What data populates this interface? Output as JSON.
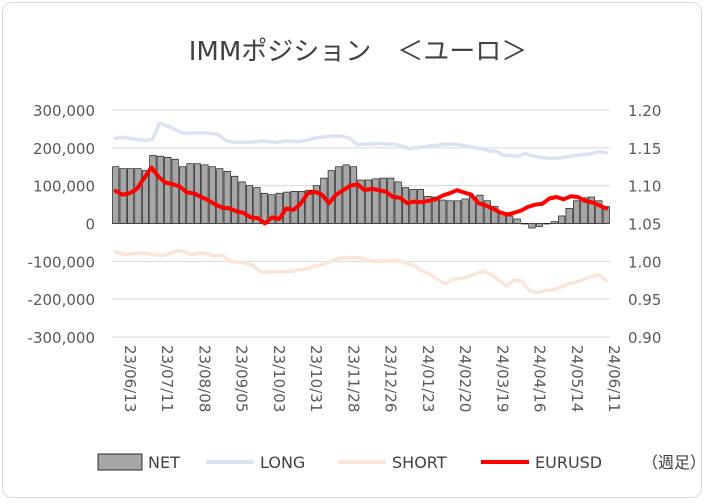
{
  "chart_data": {
    "type": "bar+line",
    "title": "IMMポジション　＜ユーロ＞",
    "unit_note": "（週足）",
    "y_left": {
      "min": -300000,
      "max": 300000,
      "step": 100000,
      "tick_labels": [
        "300,000",
        "200,000",
        "100,000",
        "0",
        "-100,000",
        "-200,000",
        "-300,000"
      ]
    },
    "y_right": {
      "min": 0.9,
      "max": 1.2,
      "step": 0.05,
      "tick_labels": [
        "1.20",
        "1.15",
        "1.10",
        "1.05",
        "1.00",
        "0.95",
        "0.90"
      ]
    },
    "x_tick_labels": [
      "23/06/13",
      "23/07/11",
      "23/08/08",
      "23/09/05",
      "23/10/03",
      "23/10/31",
      "23/11/28",
      "23/12/26",
      "24/01/23",
      "24/02/20",
      "24/03/19",
      "24/04/16",
      "24/05/14",
      "24/06/11"
    ],
    "series": [
      {
        "name": "NET",
        "kind": "bar",
        "color": "#a6a6a6",
        "values": [
          150000,
          145000,
          145000,
          145000,
          140000,
          180000,
          178000,
          175000,
          170000,
          150000,
          158000,
          158000,
          155000,
          150000,
          145000,
          138000,
          125000,
          110000,
          100000,
          95000,
          80000,
          76000,
          80000,
          83000,
          85000,
          85000,
          88000,
          100000,
          120000,
          140000,
          150000,
          155000,
          150000,
          115000,
          115000,
          118000,
          120000,
          120000,
          110000,
          95000,
          90000,
          90000,
          72000,
          70000,
          62000,
          60000,
          60000,
          65000,
          70000,
          75000,
          60000,
          45000,
          30000,
          20000,
          12000,
          0,
          -12000,
          -8000,
          0,
          5000,
          20000,
          40000,
          60000,
          68000,
          70000,
          60000,
          45000
        ]
      },
      {
        "name": "LONG",
        "kind": "line",
        "color": "#dae3f3",
        "values": [
          225000,
          228000,
          225000,
          222000,
          220000,
          222000,
          265000,
          258000,
          250000,
          240000,
          238000,
          240000,
          240000,
          238000,
          235000,
          220000,
          215000,
          215000,
          214000,
          216000,
          218000,
          216000,
          214000,
          218000,
          218000,
          216000,
          220000,
          225000,
          228000,
          230000,
          232000,
          230000,
          225000,
          208000,
          210000,
          210000,
          212000,
          210000,
          210000,
          205000,
          198000,
          200000,
          202000,
          205000,
          207000,
          210000,
          210000,
          208000,
          205000,
          200000,
          198000,
          192000,
          190000,
          180000,
          180000,
          178000,
          185000,
          178000,
          175000,
          172000,
          172000,
          174000,
          178000,
          180000,
          182000,
          185000,
          190000,
          187000
        ]
      },
      {
        "name": "SHORT",
        "kind": "line",
        "color": "#fbe5d6",
        "values": [
          -75000,
          -82000,
          -80000,
          -78000,
          -80000,
          -82000,
          -85000,
          -80000,
          -72000,
          -75000,
          -82000,
          -78000,
          -80000,
          -85000,
          -85000,
          -100000,
          -102000,
          -105000,
          -112000,
          -130000,
          -128000,
          -128000,
          -128000,
          -126000,
          -122000,
          -120000,
          -112000,
          -108000,
          -100000,
          -92000,
          -90000,
          -90000,
          -92000,
          -98000,
          -100000,
          -100000,
          -98000,
          -98000,
          -105000,
          -112000,
          -125000,
          -135000,
          -148000,
          -160000,
          -148000,
          -145000,
          -140000,
          -132000,
          -125000,
          -135000,
          -150000,
          -165000,
          -150000,
          -152000,
          -178000,
          -182000,
          -178000,
          -175000,
          -168000,
          -160000,
          -155000,
          -148000,
          -140000,
          -135000,
          -150000
        ]
      },
      {
        "name": "EURUSD",
        "kind": "line",
        "color": "#ff0000",
        "axis": "right",
        "values": [
          1.093,
          1.088,
          1.09,
          1.096,
          1.11,
          1.124,
          1.112,
          1.104,
          1.102,
          1.099,
          1.091,
          1.09,
          1.085,
          1.081,
          1.075,
          1.071,
          1.07,
          1.066,
          1.064,
          1.058,
          1.057,
          1.05,
          1.058,
          1.056,
          1.07,
          1.068,
          1.076,
          1.09,
          1.092,
          1.088,
          1.077,
          1.088,
          1.094,
          1.1,
          1.102,
          1.094,
          1.096,
          1.094,
          1.092,
          1.085,
          1.084,
          1.077,
          1.079,
          1.078,
          1.08,
          1.082,
          1.087,
          1.09,
          1.094,
          1.091,
          1.088,
          1.077,
          1.074,
          1.07,
          1.065,
          1.062,
          1.064,
          1.067,
          1.072,
          1.075,
          1.076,
          1.083,
          1.085,
          1.082,
          1.086,
          1.085,
          1.08,
          1.078,
          1.074,
          1.07
        ]
      }
    ]
  }
}
